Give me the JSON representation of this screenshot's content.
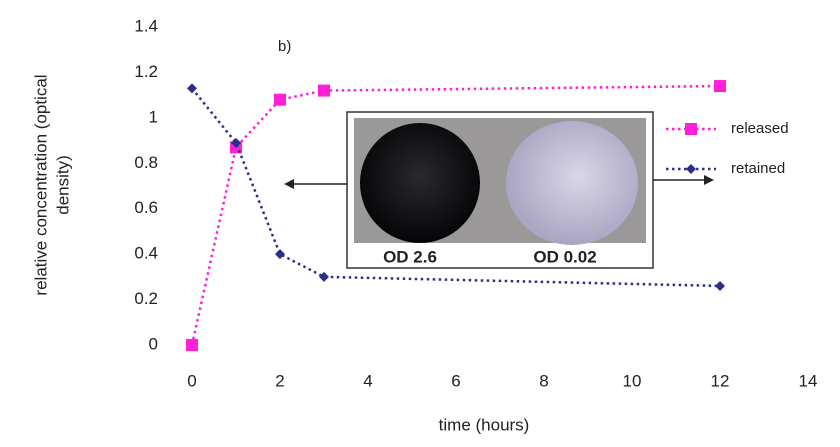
{
  "chart_data": {
    "type": "line",
    "xlabel": "time (hours)",
    "ylabel": [
      "relative concentration (optical",
      "density)"
    ],
    "annotation": "b)",
    "inset_labels": [
      "OD  2.6",
      "OD 0.02"
    ],
    "x": [
      0,
      1,
      2,
      3,
      12
    ],
    "series": [
      {
        "name": "released",
        "color": "#ff1fd9",
        "marker": "square",
        "values": [
          0,
          0.87,
          1.08,
          1.12,
          1.14
        ]
      },
      {
        "name": "retained",
        "color": "#2b2f8a",
        "marker": "diamond",
        "values": [
          1.13,
          0.89,
          0.4,
          0.3,
          0.26
        ]
      }
    ],
    "xlim": [
      0,
      14
    ],
    "xticks": [
      0,
      2,
      4,
      6,
      8,
      10,
      12,
      14
    ],
    "ylim": [
      0,
      1.4
    ],
    "yticks": [
      0,
      0.2,
      0.4,
      0.6,
      0.8,
      1,
      1.2,
      1.4
    ],
    "grid": false,
    "legend": "right"
  }
}
